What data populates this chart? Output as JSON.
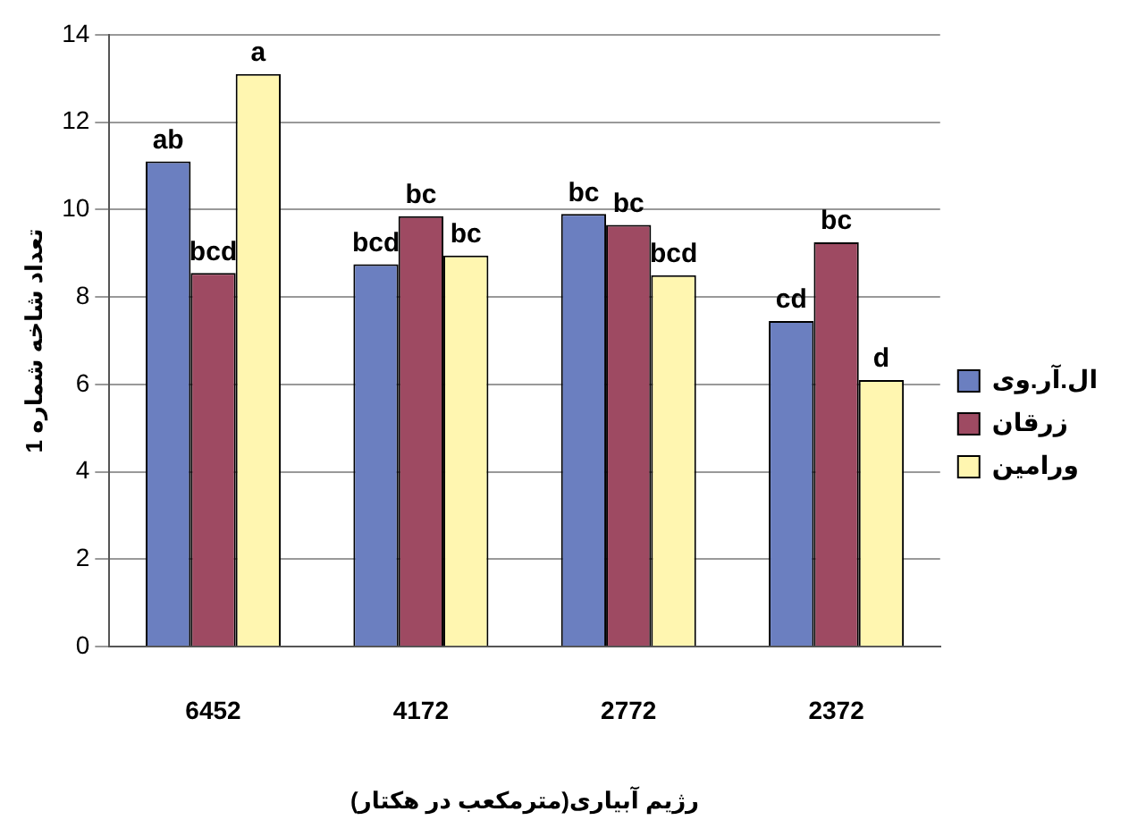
{
  "chart_data": {
    "type": "bar",
    "xlabel": "رژیم آبیاری(مترمکعب در هکتار)",
    "ylabel": "تعداد شاخه شماره 1",
    "categories": [
      "6452",
      "4172",
      "2772",
      "2372"
    ],
    "series": [
      {
        "name": "ال.آر.وی",
        "color": "#6b7fc0",
        "values": [
          11.1,
          8.75,
          9.9,
          7.45
        ],
        "value_labels": [
          "ab",
          "bcd",
          "bc",
          "cd"
        ]
      },
      {
        "name": "زرقان",
        "color": "#9e4a62",
        "values": [
          8.55,
          9.85,
          9.65,
          9.25
        ],
        "value_labels": [
          "bcd",
          "bc",
          "bc",
          "bc"
        ]
      },
      {
        "name": "ورامین",
        "color": "#fff6b0",
        "values": [
          13.1,
          8.95,
          8.5,
          6.1
        ],
        "value_labels": [
          "a",
          "bc",
          "bcd",
          "d"
        ]
      }
    ],
    "ylim": [
      0,
      14
    ],
    "yticks": [
      0,
      2,
      4,
      6,
      8,
      10,
      12,
      14
    ],
    "grid": "y",
    "legend": "right"
  }
}
